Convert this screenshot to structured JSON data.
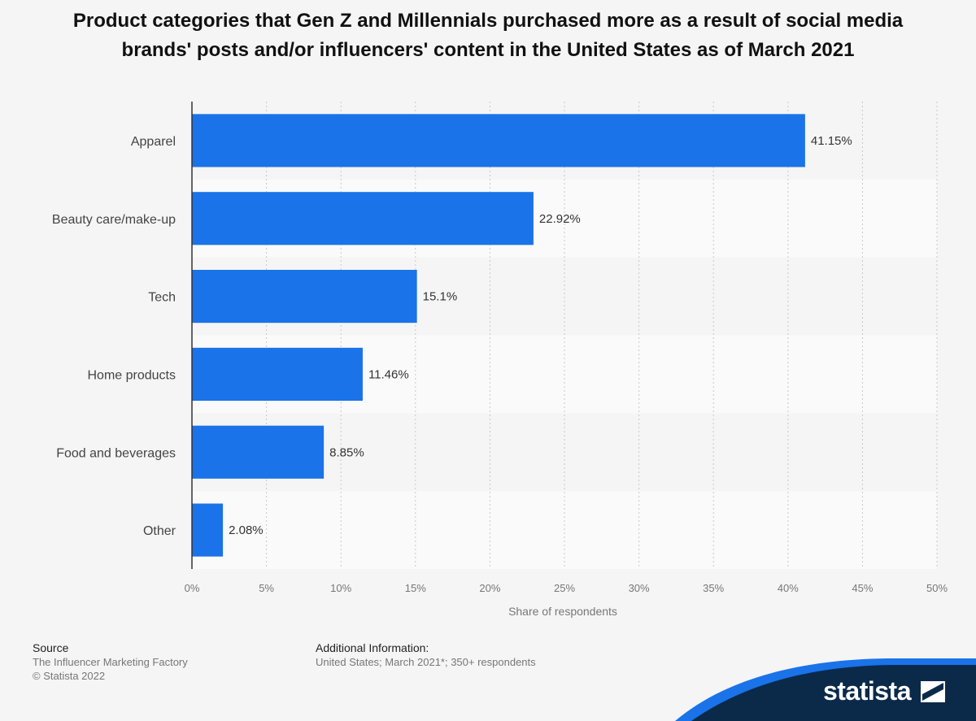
{
  "chart_data": {
    "type": "bar",
    "orientation": "horizontal",
    "title": "Product categories that Gen Z and Millennials purchased more as a result of social media brands' posts and/or influencers' content in the United States as of March 2021",
    "categories": [
      "Apparel",
      "Beauty care/make-up",
      "Tech",
      "Home products",
      "Food and beverages",
      "Other"
    ],
    "values": [
      41.15,
      22.92,
      15.1,
      11.46,
      8.85,
      2.08
    ],
    "value_labels": [
      "41.15%",
      "22.92%",
      "15.1%",
      "11.46%",
      "8.85%",
      "2.08%"
    ],
    "xlabel": "Share of respondents",
    "ylabel": "",
    "xlim": [
      0,
      50
    ],
    "xticks": [
      0,
      5,
      10,
      15,
      20,
      25,
      30,
      35,
      40,
      45,
      50
    ],
    "xtick_labels": [
      "0%",
      "5%",
      "10%",
      "15%",
      "20%",
      "25%",
      "30%",
      "35%",
      "40%",
      "45%",
      "50%"
    ],
    "grid": true,
    "legend": "none",
    "bar_color": "#1a73e8"
  },
  "footer": {
    "source_heading": "Source",
    "source_line1": "The Influencer Marketing Factory",
    "source_line2": "© Statista 2022",
    "info_heading": "Additional Information:",
    "info_line1": "United States; March 2021*; 350+ respondents"
  },
  "brand": {
    "logo_text": "statista",
    "color": "#0b2a4a",
    "accent": "#1a73e8"
  }
}
